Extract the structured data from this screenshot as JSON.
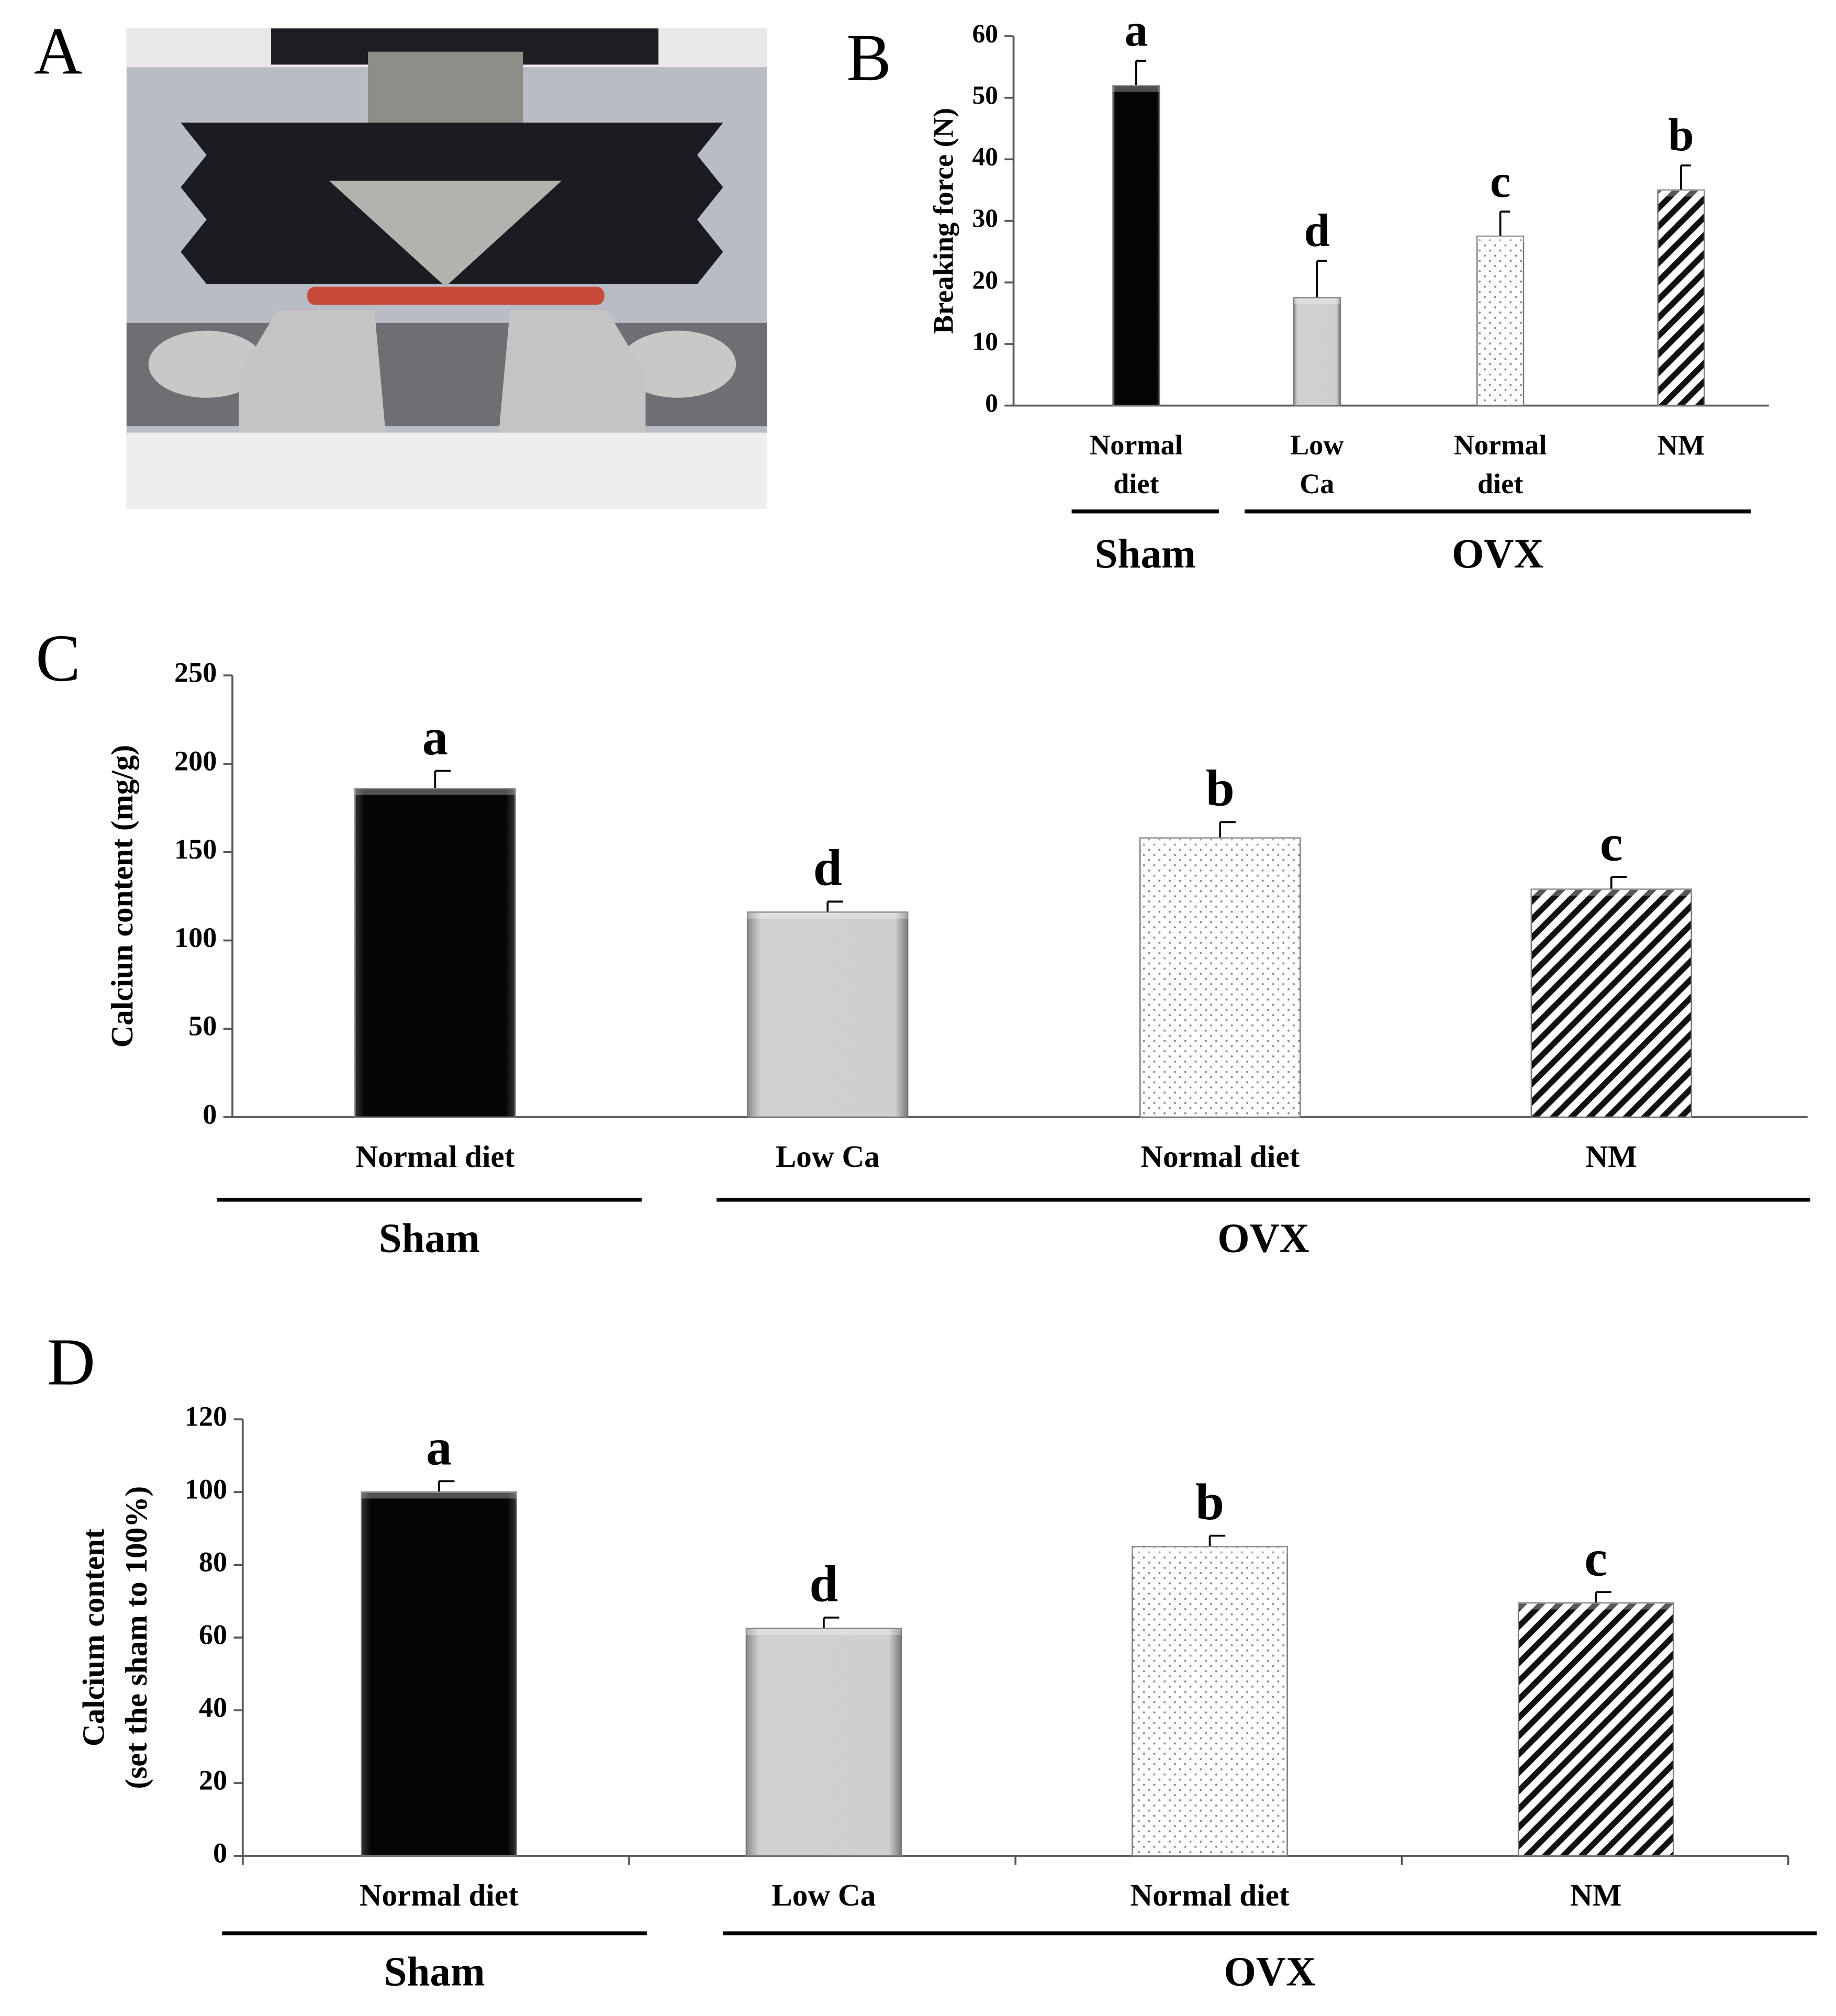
{
  "photo_panel": {
    "label": "A"
  },
  "chart_data": [
    {
      "type": "bar",
      "panel": "B",
      "y_label": [
        "Breaking force (N)"
      ],
      "categories": [
        "Normal diet",
        "Low Ca",
        "Normal diet",
        "NM"
      ],
      "values": [
        52,
        17.5,
        27.5,
        35
      ],
      "errors": [
        4,
        6,
        4,
        4
      ],
      "annotations": [
        "a",
        "d",
        "c",
        "b"
      ],
      "patterns": [
        "solid",
        "gradient",
        "dots",
        "hatch"
      ],
      "groups": [
        {
          "name": "Sham"
        },
        {
          "name": "OVX"
        }
      ],
      "ylim": [
        0,
        60
      ],
      "yticks": [
        0,
        10,
        20,
        30,
        40,
        50,
        60
      ]
    },
    {
      "type": "bar",
      "panel": "C",
      "y_label": [
        "Calciun content (mg/g)"
      ],
      "categories": [
        "Normal diet",
        "Low Ca",
        "Normal diet",
        "NM"
      ],
      "values": [
        186,
        116,
        158,
        129
      ],
      "errors": [
        10,
        6,
        9,
        7
      ],
      "annotations": [
        "a",
        "d",
        "b",
        "c"
      ],
      "patterns": [
        "solid",
        "gradient",
        "dots",
        "hatch"
      ],
      "groups": [
        {
          "name": "Sham"
        },
        {
          "name": "OVX"
        }
      ],
      "ylim": [
        0,
        250
      ],
      "yticks": [
        0,
        50,
        100,
        150,
        200,
        250
      ]
    },
    {
      "type": "bar",
      "panel": "D",
      "y_label": [
        "Calcium content",
        "(set the sham to 100%)"
      ],
      "categories": [
        "Normal diet",
        "Low Ca",
        "Normal diet",
        "NM"
      ],
      "values": [
        100,
        62.5,
        85,
        69.5
      ],
      "errors": [
        3,
        3,
        3,
        3
      ],
      "annotations": [
        "a",
        "d",
        "b",
        "c"
      ],
      "patterns": [
        "solid",
        "gradient",
        "dots",
        "hatch"
      ],
      "groups": [
        {
          "name": "Sham"
        },
        {
          "name": "OVX"
        }
      ],
      "ylim": [
        0,
        120
      ],
      "yticks": [
        0,
        20,
        40,
        60,
        80,
        100,
        120
      ]
    }
  ]
}
